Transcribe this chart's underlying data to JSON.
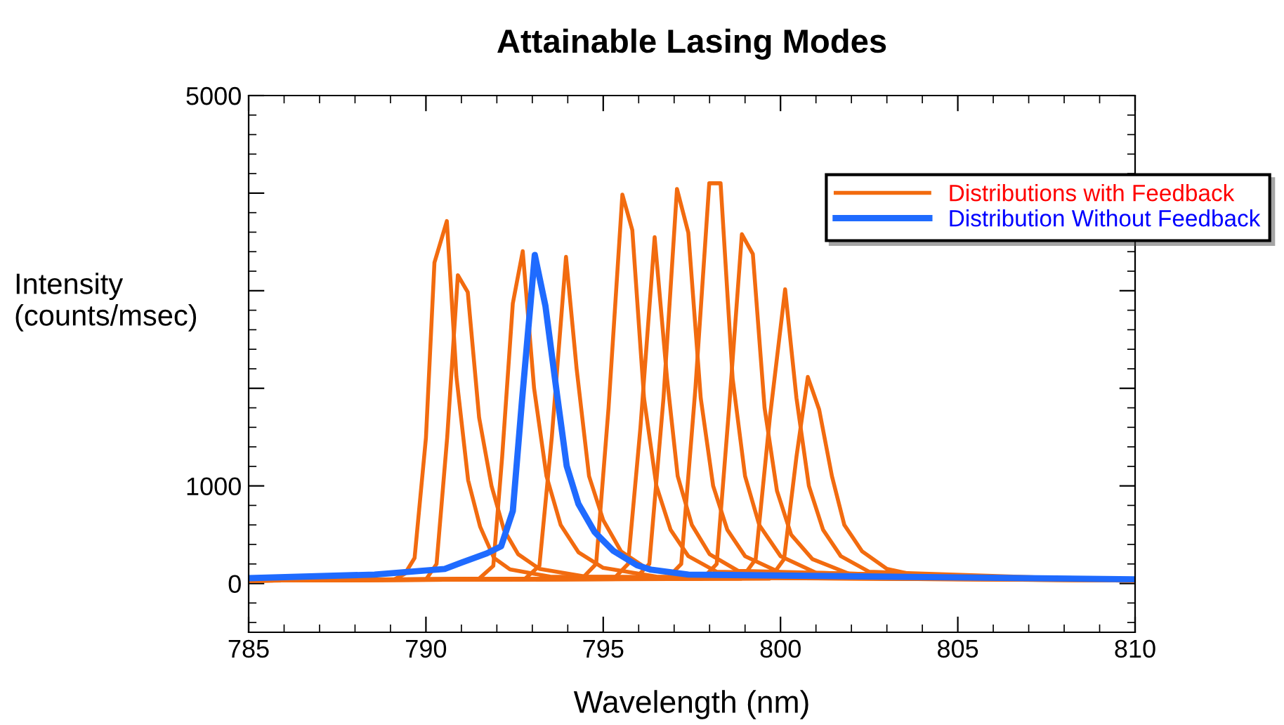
{
  "chart_data": {
    "type": "line",
    "title": "Attainable Lasing Modes",
    "xlabel": "Wavelength (nm)",
    "ylabel": "Intensity\n(counts/msec)",
    "xlim": [
      785,
      810
    ],
    "xticks": [
      785,
      790,
      795,
      800,
      805,
      810
    ],
    "ylim": [
      -500,
      5000
    ],
    "yticks": [
      0,
      1000,
      {
        "value": 2000,
        "label": null
      },
      {
        "value": 3000,
        "label": null
      },
      {
        "value": 4000,
        "label": null
      },
      5000
    ],
    "grid": false,
    "legend": "top right",
    "marker": "none",
    "line_style": "solid",
    "series": [
      {
        "name": "Distributions with Feedback",
        "color": "#f26b0f",
        "x": [
          785,
          789.1,
          789.41,
          789.68,
          790.0,
          790.24,
          790.59,
          790.86,
          791.19,
          791.53,
          791.92,
          792.37,
          793.5,
          810
        ],
        "values": [
          30,
          40,
          101,
          261,
          1492,
          3289,
          3714,
          2120,
          1058,
          580,
          261,
          145,
          70,
          30
        ]
      },
      {
        "color": "#f26b0f",
        "x": [
          785,
          790.0,
          790.3,
          790.6,
          790.9,
          791.18,
          791.5,
          791.85,
          792.2,
          792.6,
          793.2,
          794.5,
          810
        ],
        "values": [
          30,
          40,
          200,
          1500,
          3159,
          2985,
          1700,
          1000,
          550,
          300,
          150,
          70,
          30
        ]
      },
      {
        "color": "#f26b0f",
        "x": [
          785,
          791.5,
          791.9,
          792.15,
          792.45,
          792.73,
          793.05,
          793.4,
          793.8,
          794.3,
          795,
          796.5,
          810
        ],
        "values": [
          30,
          50,
          180,
          1300,
          2869,
          3405,
          2000,
          1100,
          600,
          320,
          160,
          70,
          30
        ]
      },
      {
        "color": "#f26b0f",
        "x": [
          785,
          792.8,
          793.2,
          793.55,
          793.95,
          794.25,
          794.6,
          795.0,
          795.5,
          796.2,
          797.5,
          810
        ],
        "values": [
          30,
          50,
          180,
          1500,
          3347,
          2200,
          1100,
          650,
          330,
          160,
          70,
          30
        ]
      },
      {
        "color": "#f26b0f",
        "x": [
          785,
          794.4,
          794.8,
          795.15,
          795.54,
          795.82,
          796.15,
          796.5,
          796.9,
          797.4,
          798.2,
          810
        ],
        "values": [
          30,
          50,
          200,
          1800,
          3985,
          3622,
          1900,
          1000,
          550,
          280,
          120,
          30
        ]
      },
      {
        "color": "#f26b0f",
        "x": [
          785,
          795.3,
          795.7,
          796.05,
          796.45,
          796.8,
          797.1,
          797.5,
          798,
          798.8,
          810
        ],
        "values": [
          30,
          50,
          200,
          1600,
          3550,
          2100,
          1100,
          600,
          300,
          130,
          30
        ]
      },
      {
        "color": "#f26b0f",
        "x": [
          785,
          795.9,
          796.3,
          796.7,
          797.08,
          797.4,
          797.75,
          798.1,
          798.5,
          799,
          800,
          810
        ],
        "values": [
          30,
          50,
          200,
          1900,
          4043,
          3594,
          1900,
          1000,
          550,
          280,
          110,
          30
        ]
      },
      {
        "color": "#f26b0f",
        "x": [
          785,
          796.8,
          797.2,
          797.6,
          797.99,
          798.31,
          798.65,
          799,
          799.4,
          800,
          801,
          810
        ],
        "values": [
          30,
          50,
          200,
          2000,
          4101,
          4101,
          2100,
          1100,
          600,
          280,
          110,
          30
        ]
      },
      {
        "color": "#f26b0f",
        "x": [
          785,
          797.8,
          798.2,
          798.55,
          798.91,
          799.22,
          799.55,
          799.9,
          800.3,
          800.9,
          802,
          810
        ],
        "values": [
          30,
          50,
          200,
          1800,
          3579,
          3376,
          1800,
          950,
          500,
          250,
          90,
          30
        ]
      },
      {
        "color": "#f26b0f",
        "x": [
          785,
          798.9,
          799.3,
          799.7,
          800.13,
          800.45,
          800.8,
          801.2,
          801.7,
          802.5,
          810
        ],
        "values": [
          30,
          50,
          250,
          1700,
          3014,
          1900,
          1000,
          550,
          280,
          120,
          30
        ]
      },
      {
        "color": "#f26b0f",
        "x": [
          785,
          799.7,
          800.1,
          800.45,
          800.77,
          801.09,
          801.45,
          801.8,
          802.3,
          803,
          804,
          810
        ],
        "values": [
          30,
          50,
          250,
          1300,
          2116,
          1782,
          1100,
          600,
          330,
          150,
          70,
          30
        ]
      },
      {
        "name": "Distribution Without Feedback",
        "color": "#1f6bff",
        "x": [
          785,
          788.55,
          790.53,
          791.0,
          791.72,
          792.12,
          792.45,
          792.71,
          793.07,
          793.37,
          793.7,
          793.97,
          794.3,
          794.76,
          795.29,
          795.95,
          796.35,
          797.4,
          810
        ],
        "values": [
          54,
          91,
          149,
          213,
          309,
          381,
          743,
          1879,
          3366,
          2844,
          1927,
          1203,
          816,
          526,
          333,
          188,
          141,
          91,
          43
        ]
      }
    ]
  }
}
